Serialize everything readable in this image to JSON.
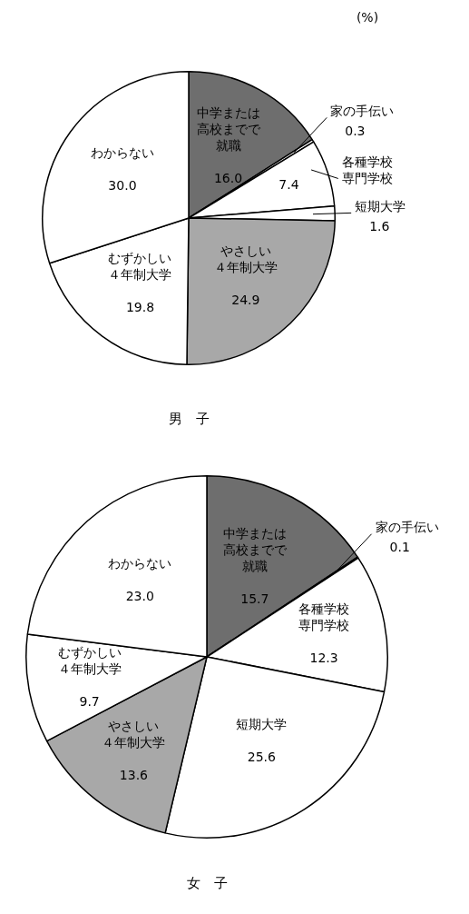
{
  "chart_data": [
    {
      "type": "pie",
      "xlabel": "男　子",
      "annotations": [
        "(%)"
      ],
      "categories": [
        "中学または高校までで就職",
        "家の手伝い",
        "各種学校専門学校",
        "短期大学",
        "やさしい４年制大学",
        "むずかしい４年制大学",
        "わからない"
      ],
      "values": [
        16.0,
        0.3,
        7.4,
        1.6,
        24.9,
        19.8,
        30.0
      ],
      "value_labels": [
        "16.0",
        "0.3",
        "7.4",
        "1.6",
        "24.9",
        "19.8",
        "30.0"
      ],
      "colors": [
        "#6e6e6e",
        "#ffffff",
        "#ffffff",
        "#ffffff",
        "#a8a8a8",
        "#ffffff",
        "#ffffff"
      ]
    },
    {
      "type": "pie",
      "xlabel": "女　子",
      "categories": [
        "中学または高校までで就職",
        "家の手伝い",
        "各種学校専門学校",
        "短期大学",
        "やさしい４年制大学",
        "むずかしい４年制大学",
        "わからない"
      ],
      "values": [
        15.7,
        0.1,
        12.3,
        25.6,
        13.6,
        9.7,
        23.0
      ],
      "value_labels": [
        "15.7",
        "0.1",
        "12.3",
        "25.6",
        "13.6",
        "9.7",
        "23.0"
      ],
      "colors": [
        "#6e6e6e",
        "#ffffff",
        "#ffffff",
        "#ffffff",
        "#a8a8a8",
        "#ffffff",
        "#ffffff"
      ]
    }
  ]
}
